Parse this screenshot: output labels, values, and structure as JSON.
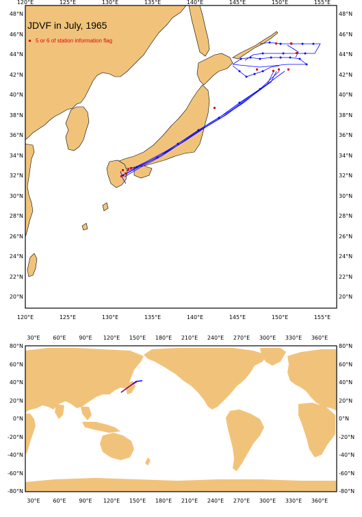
{
  "map_top": {
    "title": "JDVF in July, 1965",
    "legend_label": "5 or 6 of station information flag",
    "lon_ticks": [
      "120°E",
      "125°E",
      "130°E",
      "135°E",
      "140°E",
      "145°E",
      "150°E",
      "155°E"
    ],
    "lat_ticks": [
      "20°N",
      "22°N",
      "24°N",
      "26°N",
      "28°N",
      "30°N",
      "32°N",
      "34°N",
      "36°N",
      "38°N",
      "40°N",
      "42°N",
      "44°N",
      "46°N",
      "48°N"
    ],
    "colors": {
      "land": "#f1c37a",
      "track": "#0000ff",
      "flag": "#e00000"
    }
  },
  "map_bottom": {
    "lon_ticks": [
      "30°E",
      "60°E",
      "90°E",
      "120°E",
      "150°E",
      "180°E",
      "210°E",
      "240°E",
      "270°E",
      "300°E",
      "330°E",
      "360°E"
    ],
    "lat_ticks": [
      "80°N",
      "60°N",
      "40°N",
      "20°N",
      "0°N",
      "-20°N",
      "-40°N",
      "-60°N",
      "-80°N"
    ]
  }
}
